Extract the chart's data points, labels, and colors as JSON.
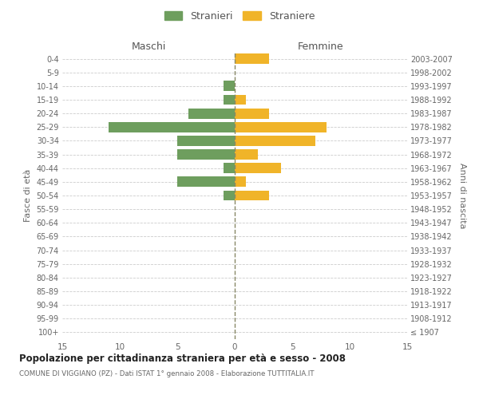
{
  "age_groups": [
    "100+",
    "95-99",
    "90-94",
    "85-89",
    "80-84",
    "75-79",
    "70-74",
    "65-69",
    "60-64",
    "55-59",
    "50-54",
    "45-49",
    "40-44",
    "35-39",
    "30-34",
    "25-29",
    "20-24",
    "15-19",
    "10-14",
    "5-9",
    "0-4"
  ],
  "birth_years": [
    "≤ 1907",
    "1908-1912",
    "1913-1917",
    "1918-1922",
    "1923-1927",
    "1928-1932",
    "1933-1937",
    "1938-1942",
    "1943-1947",
    "1948-1952",
    "1953-1957",
    "1958-1962",
    "1963-1967",
    "1968-1972",
    "1973-1977",
    "1978-1982",
    "1983-1987",
    "1988-1992",
    "1993-1997",
    "1998-2002",
    "2003-2007"
  ],
  "males": [
    0,
    0,
    0,
    0,
    0,
    0,
    0,
    0,
    0,
    0,
    1,
    5,
    1,
    5,
    5,
    11,
    4,
    1,
    1,
    0,
    0
  ],
  "females": [
    0,
    0,
    0,
    0,
    0,
    0,
    0,
    0,
    0,
    0,
    3,
    1,
    4,
    2,
    7,
    8,
    3,
    1,
    0,
    0,
    3
  ],
  "male_color": "#6e9e5e",
  "female_color": "#f0b429",
  "title": "Popolazione per cittadinanza straniera per età e sesso - 2008",
  "subtitle": "COMUNE DI VIGGIANO (PZ) - Dati ISTAT 1° gennaio 2008 - Elaborazione TUTTITALIA.IT",
  "ylabel_left": "Fasce di età",
  "ylabel_right": "Anni di nascita",
  "xlabel_left": "Maschi",
  "xlabel_right": "Femmine",
  "legend_stranieri": "Stranieri",
  "legend_straniere": "Straniere",
  "xlim": 15,
  "background_color": "#ffffff",
  "grid_color": "#cccccc"
}
